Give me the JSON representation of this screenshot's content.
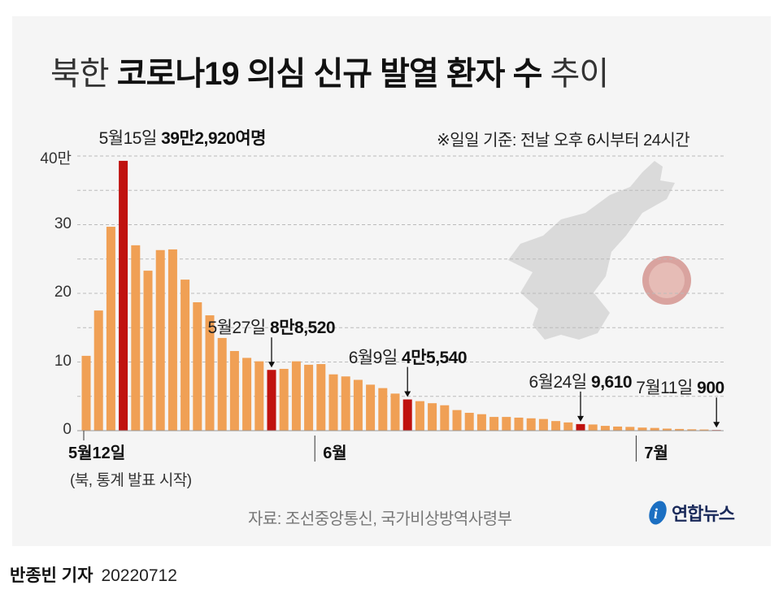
{
  "title": {
    "part1": "북한",
    "part2": "코로나19 의심 신규 발열 환자 수",
    "part3": "추이"
  },
  "note": "※일일 기준: 전날 오후 6시부터 24시간",
  "source": "자료: 조선중앙통신, 국가비상방역사령부",
  "logo": {
    "text": "연합뉴스"
  },
  "byline": {
    "author": "반종빈 기자",
    "date": "20220712"
  },
  "colors": {
    "bar": "#f0a055",
    "highlight": "#c0120f",
    "background": "#f5f5f5",
    "grid": "#bbbbbb"
  },
  "chart_data": {
    "type": "bar",
    "unit": "만",
    "ylim": [
      0,
      40
    ],
    "yticks": [
      {
        "value": 0,
        "label": "0"
      },
      {
        "value": 10,
        "label": "10"
      },
      {
        "value": 20,
        "label": "20"
      },
      {
        "value": 30,
        "label": "30"
      },
      {
        "value": 40,
        "label": "40만"
      }
    ],
    "grid": true,
    "grid_step": 5,
    "x_start_label": "5월12일",
    "x_start_sublabel": "(북, 통계 발표 시작)",
    "month_labels": [
      {
        "label": "6월",
        "at_bar": 18.5
      },
      {
        "label": "7월",
        "at_bar": 44.5
      }
    ],
    "values": [
      10.9,
      17.5,
      29.7,
      39.3,
      27.0,
      23.3,
      26.3,
      26.4,
      22.0,
      18.7,
      16.8,
      13.5,
      11.6,
      10.6,
      10.1,
      8.85,
      9.0,
      10.1,
      9.6,
      9.7,
      8.2,
      7.9,
      7.4,
      6.7,
      6.2,
      5.4,
      4.55,
      4.3,
      4.0,
      3.7,
      3.0,
      2.6,
      2.4,
      2.0,
      2.0,
      1.9,
      1.8,
      1.7,
      1.4,
      1.2,
      0.96,
      0.9,
      0.7,
      0.6,
      0.55,
      0.45,
      0.4,
      0.3,
      0.25,
      0.2,
      0.17,
      0.09
    ],
    "annotations": [
      {
        "bar": 3,
        "date": "5월15일",
        "value": "39만2,920여명",
        "arrow": false
      },
      {
        "bar": 15,
        "date": "5월27일",
        "value": "8만8,520",
        "arrow": true
      },
      {
        "bar": 26,
        "date": "6월9일",
        "value": "4만5,540",
        "arrow": true
      },
      {
        "bar": 40,
        "date": "6월24일",
        "value": "9,610",
        "arrow": true
      },
      {
        "bar": 51,
        "date": "7월11일",
        "value": "900",
        "arrow": true
      }
    ]
  }
}
